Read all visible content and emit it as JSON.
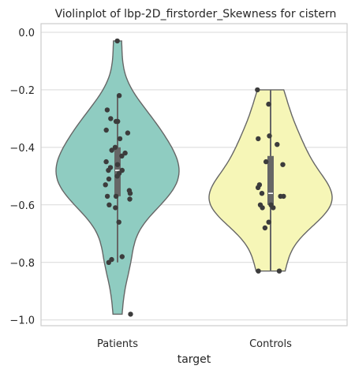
{
  "chart_data": {
    "type": "violin",
    "title": "Violinplot of lbp-2D_firstorder_Skewness for cistern",
    "xlabel": "target",
    "ylabel": "",
    "ylim": [
      -1.02,
      0.03
    ],
    "yticks": [
      0.0,
      -0.2,
      -0.4,
      -0.6,
      -0.8,
      -1.0
    ],
    "ytick_labels": [
      "0.0",
      "−0.2",
      "−0.4",
      "−0.6",
      "−0.8",
      "−1.0"
    ],
    "grid": true,
    "categories": [
      "Patients",
      "Controls"
    ],
    "series": [
      {
        "category": "Patients",
        "color": "#8fccc1",
        "min": -0.98,
        "max": -0.03,
        "q1": -0.57,
        "median": -0.48,
        "q3": -0.4,
        "whisker_low": -0.8,
        "whisker_high": -0.22,
        "points": [
          -0.03,
          -0.22,
          -0.27,
          -0.3,
          -0.31,
          -0.31,
          -0.34,
          -0.35,
          -0.37,
          -0.4,
          -0.41,
          -0.42,
          -0.43,
          -0.45,
          -0.46,
          -0.47,
          -0.48,
          -0.48,
          -0.49,
          -0.5,
          -0.51,
          -0.53,
          -0.55,
          -0.56,
          -0.57,
          -0.57,
          -0.58,
          -0.6,
          -0.61,
          -0.66,
          -0.78,
          -0.79,
          -0.8,
          -0.98
        ]
      },
      {
        "category": "Controls",
        "color": "#f6f6b7",
        "min": -0.83,
        "max": -0.2,
        "q1": -0.6,
        "median": -0.56,
        "q3": -0.43,
        "whisker_low": -0.83,
        "whisker_high": -0.2,
        "points": [
          -0.2,
          -0.25,
          -0.36,
          -0.37,
          -0.39,
          -0.45,
          -0.46,
          -0.53,
          -0.54,
          -0.56,
          -0.57,
          -0.57,
          -0.6,
          -0.6,
          -0.61,
          -0.61,
          -0.66,
          -0.68,
          -0.83,
          -0.83
        ]
      }
    ]
  }
}
